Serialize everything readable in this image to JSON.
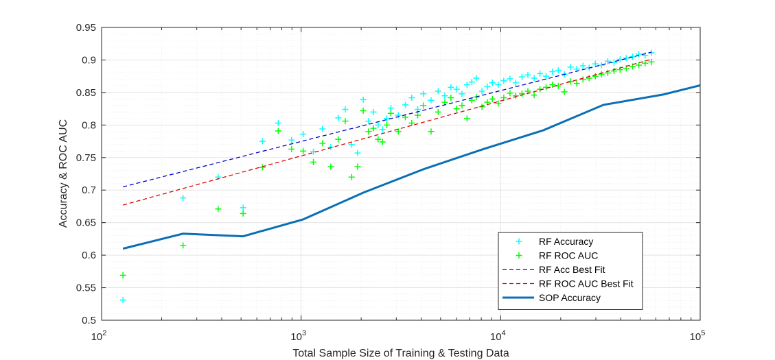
{
  "chart_data": {
    "type": "scatter",
    "xlabel": "Total Sample Size of Training & Testing Data",
    "ylabel": "Accuracy & ROC AUC",
    "xscale": "log",
    "xlim": [
      100,
      100000
    ],
    "ylim": [
      0.5,
      0.95
    ],
    "x_ticks": [
      {
        "base": "10",
        "exp": "2"
      },
      {
        "base": "10",
        "exp": "3"
      },
      {
        "base": "10",
        "exp": "4"
      },
      {
        "base": "10",
        "exp": "5"
      }
    ],
    "y_ticks": [
      "0.5",
      "0.55",
      "0.6",
      "0.65",
      "0.7",
      "0.75",
      "0.8",
      "0.85",
      "0.9",
      "0.95"
    ],
    "grid": true,
    "legend_position": "bottom-right",
    "series": [
      {
        "name": "RF Accuracy",
        "kind": "markers",
        "marker": "+",
        "color": "#00ffff",
        "points": [
          [
            128,
            0.531
          ],
          [
            256,
            0.688
          ],
          [
            384,
            0.72
          ],
          [
            512,
            0.673
          ],
          [
            640,
            0.775
          ],
          [
            768,
            0.803
          ],
          [
            896,
            0.777
          ],
          [
            1024,
            0.786
          ],
          [
            1152,
            0.759
          ],
          [
            1280,
            0.794
          ],
          [
            1408,
            0.766
          ],
          [
            1536,
            0.811
          ],
          [
            1664,
            0.824
          ],
          [
            1792,
            0.77
          ],
          [
            1920,
            0.757
          ],
          [
            2048,
            0.839
          ],
          [
            2176,
            0.806
          ],
          [
            2304,
            0.82
          ],
          [
            2432,
            0.8
          ],
          [
            2560,
            0.793
          ],
          [
            2688,
            0.81
          ],
          [
            2816,
            0.826
          ],
          [
            3072,
            0.815
          ],
          [
            3328,
            0.831
          ],
          [
            3584,
            0.842
          ],
          [
            3840,
            0.824
          ],
          [
            4096,
            0.848
          ],
          [
            4480,
            0.838
          ],
          [
            4864,
            0.852
          ],
          [
            5248,
            0.845
          ],
          [
            5632,
            0.858
          ],
          [
            6016,
            0.855
          ],
          [
            6400,
            0.848
          ],
          [
            6784,
            0.862
          ],
          [
            7168,
            0.866
          ],
          [
            7552,
            0.872
          ],
          [
            8064,
            0.852
          ],
          [
            8576,
            0.859
          ],
          [
            9088,
            0.865
          ],
          [
            9728,
            0.862
          ],
          [
            10368,
            0.868
          ],
          [
            11136,
            0.871
          ],
          [
            11904,
            0.865
          ],
          [
            12800,
            0.874
          ],
          [
            13696,
            0.877
          ],
          [
            14720,
            0.872
          ],
          [
            15744,
            0.879
          ],
          [
            16896,
            0.875
          ],
          [
            18176,
            0.882
          ],
          [
            19456,
            0.884
          ],
          [
            20864,
            0.878
          ],
          [
            22400,
            0.889
          ],
          [
            24064,
            0.886
          ],
          [
            25856,
            0.891
          ],
          [
            27776,
            0.888
          ],
          [
            29824,
            0.894
          ],
          [
            32000,
            0.892
          ],
          [
            34432,
            0.898
          ],
          [
            36992,
            0.896
          ],
          [
            39680,
            0.901
          ],
          [
            42624,
            0.903
          ],
          [
            45824,
            0.905
          ],
          [
            49280,
            0.909
          ],
          [
            52992,
            0.907
          ],
          [
            56960,
            0.911
          ]
        ]
      },
      {
        "name": "RF ROC AUC",
        "kind": "markers",
        "marker": "+",
        "color": "#00ff00",
        "points": [
          [
            128,
            0.569
          ],
          [
            256,
            0.615
          ],
          [
            384,
            0.671
          ],
          [
            512,
            0.664
          ],
          [
            640,
            0.735
          ],
          [
            768,
            0.791
          ],
          [
            896,
            0.763
          ],
          [
            1024,
            0.76
          ],
          [
            1152,
            0.743
          ],
          [
            1280,
            0.772
          ],
          [
            1408,
            0.736
          ],
          [
            1536,
            0.778
          ],
          [
            1664,
            0.806
          ],
          [
            1792,
            0.72
          ],
          [
            1920,
            0.736
          ],
          [
            2048,
            0.822
          ],
          [
            2176,
            0.79
          ],
          [
            2304,
            0.795
          ],
          [
            2432,
            0.778
          ],
          [
            2560,
            0.774
          ],
          [
            2688,
            0.8
          ],
          [
            2816,
            0.818
          ],
          [
            3072,
            0.79
          ],
          [
            3328,
            0.812
          ],
          [
            3584,
            0.803
          ],
          [
            3840,
            0.815
          ],
          [
            4096,
            0.83
          ],
          [
            4480,
            0.79
          ],
          [
            4864,
            0.82
          ],
          [
            5248,
            0.835
          ],
          [
            5632,
            0.842
          ],
          [
            6016,
            0.825
          ],
          [
            6400,
            0.83
          ],
          [
            6784,
            0.81
          ],
          [
            7168,
            0.838
          ],
          [
            7552,
            0.843
          ],
          [
            8064,
            0.828
          ],
          [
            8576,
            0.835
          ],
          [
            9088,
            0.84
          ],
          [
            9728,
            0.833
          ],
          [
            10368,
            0.842
          ],
          [
            11136,
            0.849
          ],
          [
            11904,
            0.845
          ],
          [
            12800,
            0.848
          ],
          [
            13696,
            0.852
          ],
          [
            14720,
            0.846
          ],
          [
            15744,
            0.855
          ],
          [
            16896,
            0.858
          ],
          [
            18176,
            0.862
          ],
          [
            19456,
            0.86
          ],
          [
            20864,
            0.851
          ],
          [
            22400,
            0.867
          ],
          [
            24064,
            0.864
          ],
          [
            25856,
            0.87
          ],
          [
            27776,
            0.872
          ],
          [
            29824,
            0.875
          ],
          [
            32000,
            0.878
          ],
          [
            34432,
            0.88
          ],
          [
            36992,
            0.883
          ],
          [
            39680,
            0.885
          ],
          [
            42624,
            0.887
          ],
          [
            45824,
            0.89
          ],
          [
            49280,
            0.892
          ],
          [
            52992,
            0.895
          ],
          [
            56960,
            0.897
          ]
        ]
      },
      {
        "name": "RF Acc Best Fit",
        "kind": "dashed",
        "color": "#0000cc",
        "points": [
          [
            128,
            0.705
          ],
          [
            57000,
            0.912
          ]
        ]
      },
      {
        "name": "RF ROC AUC Best Fit",
        "kind": "dashed",
        "color": "#dd0000",
        "points": [
          [
            128,
            0.677
          ],
          [
            57000,
            0.901
          ]
        ]
      },
      {
        "name": "SOP Accuracy",
        "kind": "solid",
        "color": "#0a6fb5",
        "points": [
          [
            128,
            0.61
          ],
          [
            256,
            0.633
          ],
          [
            512,
            0.629
          ],
          [
            1024,
            0.655
          ],
          [
            2048,
            0.696
          ],
          [
            4096,
            0.732
          ],
          [
            8192,
            0.763
          ],
          [
            16384,
            0.792
          ],
          [
            32768,
            0.831
          ],
          [
            65536,
            0.847
          ],
          [
            100000,
            0.861
          ]
        ]
      }
    ]
  }
}
